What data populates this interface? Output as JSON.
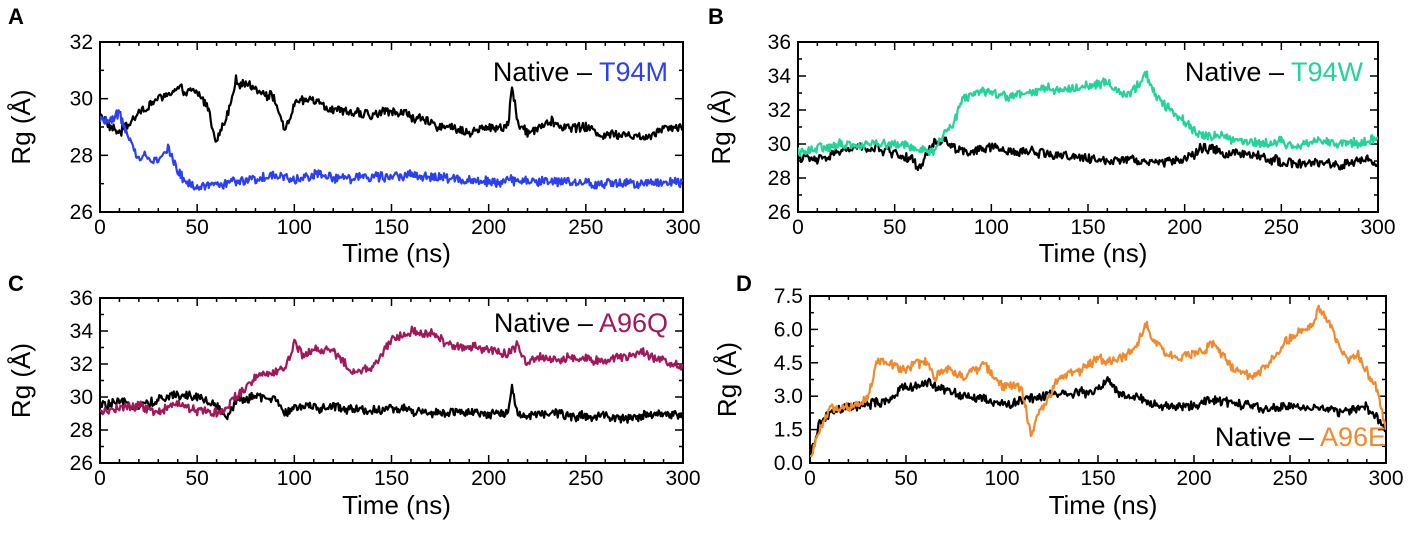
{
  "chart_data": [
    {
      "type": "line",
      "panel": "A",
      "xlabel": "Time (ns)",
      "ylabel": "Rg (Å)",
      "xlim": [
        0,
        300
      ],
      "ylim": [
        26,
        32
      ],
      "xticks": [
        0,
        50,
        100,
        150,
        200,
        250,
        300
      ],
      "yticks": [
        26,
        28,
        30,
        32
      ],
      "legend": {
        "prefix": "Native – ",
        "mutant": "T94M",
        "position": "top-right"
      },
      "series": [
        {
          "name": "Native",
          "color": "#000000",
          "x": [
            0,
            5,
            10,
            20,
            30,
            40,
            50,
            55,
            60,
            65,
            70,
            80,
            90,
            95,
            100,
            110,
            120,
            130,
            140,
            150,
            160,
            170,
            180,
            190,
            200,
            210,
            212,
            215,
            220,
            230,
            240,
            250,
            260,
            270,
            280,
            290,
            300
          ],
          "values": [
            29.5,
            29.0,
            28.8,
            29.5,
            30.0,
            30.3,
            30.2,
            29.8,
            28.5,
            29.3,
            30.6,
            30.4,
            30.0,
            28.8,
            29.8,
            30.0,
            29.6,
            29.5,
            29.4,
            29.6,
            29.4,
            29.1,
            29.0,
            28.8,
            29.0,
            29.0,
            30.5,
            29.1,
            28.8,
            29.2,
            29.0,
            29.0,
            28.7,
            28.8,
            28.6,
            29.0,
            29.0
          ]
        },
        {
          "name": "T94M",
          "color": "#2b3ff5",
          "x": [
            0,
            5,
            10,
            15,
            20,
            25,
            30,
            35,
            40,
            45,
            50,
            60,
            80,
            90,
            100,
            110,
            130,
            150,
            175,
            200,
            225,
            250,
            275,
            300
          ],
          "values": [
            29.3,
            29.2,
            29.5,
            28.5,
            27.9,
            28.0,
            27.8,
            28.3,
            27.4,
            27.0,
            26.9,
            27.0,
            27.1,
            27.3,
            27.1,
            27.3,
            27.2,
            27.3,
            27.2,
            27.1,
            27.1,
            27.0,
            27.0,
            27.1
          ]
        }
      ]
    },
    {
      "type": "line",
      "panel": "B",
      "xlabel": "Time (ns)",
      "ylabel": "Rg (Å)",
      "xlim": [
        0,
        300
      ],
      "ylim": [
        26,
        36
      ],
      "xticks": [
        0,
        50,
        100,
        150,
        200,
        250,
        300
      ],
      "yticks": [
        26,
        28,
        30,
        32,
        34,
        36
      ],
      "legend": {
        "prefix": "Native – ",
        "mutant": "T94W",
        "position": "top-right"
      },
      "series": [
        {
          "name": "Native",
          "color": "#000000",
          "x": [
            0,
            10,
            20,
            30,
            40,
            50,
            60,
            62,
            70,
            75,
            80,
            90,
            100,
            110,
            120,
            130,
            140,
            150,
            160,
            170,
            180,
            190,
            200,
            210,
            220,
            230,
            240,
            250,
            260,
            270,
            280,
            290,
            300
          ],
          "values": [
            29.3,
            29.0,
            29.5,
            29.8,
            29.7,
            29.5,
            29.0,
            28.4,
            30.0,
            30.3,
            29.8,
            29.5,
            29.8,
            29.5,
            29.6,
            29.4,
            29.3,
            29.1,
            29.0,
            29.2,
            29.0,
            28.9,
            29.1,
            29.8,
            29.5,
            29.4,
            29.2,
            29.0,
            28.8,
            28.9,
            28.7,
            29.0,
            28.9
          ]
        },
        {
          "name": "T94W",
          "color": "#23d49a",
          "x": [
            0,
            10,
            20,
            30,
            40,
            50,
            60,
            70,
            75,
            80,
            85,
            90,
            100,
            110,
            120,
            130,
            140,
            150,
            160,
            165,
            170,
            175,
            180,
            185,
            190,
            200,
            210,
            220,
            230,
            240,
            250,
            260,
            270,
            280,
            290,
            300
          ],
          "values": [
            29.6,
            29.7,
            29.9,
            30.0,
            30.1,
            30.0,
            29.8,
            29.5,
            30.5,
            31.2,
            32.6,
            32.9,
            33.1,
            32.8,
            33.0,
            33.3,
            33.2,
            33.5,
            33.6,
            33.2,
            32.7,
            33.3,
            34.2,
            32.8,
            32.3,
            31.2,
            30.5,
            30.4,
            30.2,
            30.0,
            30.1,
            29.9,
            30.2,
            30.1,
            30.0,
            30.3
          ]
        }
      ]
    },
    {
      "type": "line",
      "panel": "C",
      "xlabel": "Time (ns)",
      "ylabel": "Rg (Å)",
      "xlim": [
        0,
        300
      ],
      "ylim": [
        26,
        36
      ],
      "xticks": [
        0,
        50,
        100,
        150,
        200,
        250,
        300
      ],
      "yticks": [
        26,
        28,
        30,
        32,
        34,
        36
      ],
      "legend": {
        "prefix": "Native – ",
        "mutant": "A96Q",
        "position": "top-right"
      },
      "series": [
        {
          "name": "Native",
          "color": "#000000",
          "x": [
            0,
            10,
            20,
            30,
            40,
            50,
            60,
            65,
            70,
            80,
            90,
            95,
            100,
            110,
            120,
            130,
            140,
            150,
            160,
            170,
            180,
            190,
            200,
            210,
            212,
            215,
            220,
            230,
            240,
            250,
            260,
            270,
            280,
            290,
            300
          ],
          "values": [
            29.5,
            29.6,
            29.5,
            29.8,
            30.2,
            30.0,
            29.5,
            28.7,
            29.8,
            30.0,
            29.9,
            28.9,
            29.5,
            29.3,
            29.4,
            29.3,
            29.2,
            29.3,
            29.2,
            29.0,
            29.1,
            29.0,
            28.9,
            29.1,
            30.5,
            29.0,
            28.9,
            29.0,
            28.9,
            28.8,
            28.9,
            28.7,
            28.8,
            29.0,
            28.9
          ]
        },
        {
          "name": "A96Q",
          "color": "#a3175a",
          "x": [
            0,
            10,
            20,
            30,
            40,
            50,
            60,
            65,
            70,
            75,
            80,
            90,
            95,
            100,
            105,
            110,
            120,
            130,
            140,
            145,
            150,
            160,
            170,
            180,
            190,
            200,
            210,
            215,
            220,
            225,
            230,
            240,
            250,
            260,
            270,
            280,
            290,
            300
          ],
          "values": [
            29.0,
            29.3,
            29.5,
            29.0,
            29.6,
            29.2,
            29.0,
            29.3,
            30.0,
            30.6,
            31.2,
            31.5,
            31.8,
            33.2,
            32.5,
            32.8,
            32.9,
            31.5,
            31.7,
            32.6,
            33.5,
            34.0,
            33.8,
            33.2,
            33.0,
            32.9,
            32.6,
            33.2,
            32.0,
            32.4,
            32.3,
            32.4,
            32.3,
            32.1,
            32.5,
            32.6,
            32.2,
            31.8
          ]
        }
      ]
    },
    {
      "type": "line",
      "panel": "D",
      "xlabel": "Time (ns)",
      "ylabel": "Rg (Å)",
      "xlim": [
        0,
        300
      ],
      "ylim": [
        0.0,
        7.5
      ],
      "xticks": [
        0,
        50,
        100,
        150,
        200,
        250,
        300
      ],
      "yticks": [
        "0.0",
        "1.5",
        "3.0",
        "4.5",
        "6.0",
        "7.5"
      ],
      "legend": {
        "prefix": "Native – ",
        "mutant": "A96E",
        "position": "bottom-right"
      },
      "series": [
        {
          "name": "Native",
          "color": "#000000",
          "x": [
            0,
            5,
            10,
            20,
            30,
            40,
            50,
            60,
            70,
            80,
            90,
            100,
            110,
            120,
            130,
            140,
            150,
            155,
            160,
            170,
            180,
            190,
            200,
            210,
            220,
            230,
            240,
            250,
            260,
            270,
            280,
            290,
            300
          ],
          "values": [
            0.2,
            1.8,
            2.2,
            2.5,
            2.6,
            2.8,
            3.4,
            3.6,
            3.3,
            3.0,
            2.9,
            2.6,
            2.8,
            3.0,
            3.2,
            3.1,
            3.3,
            3.8,
            3.1,
            2.9,
            2.6,
            2.5,
            2.6,
            2.8,
            2.7,
            2.5,
            2.4,
            2.6,
            2.5,
            2.4,
            2.3,
            2.5,
            1.5
          ]
        },
        {
          "name": "A96E",
          "color": "#f28a2d",
          "x": [
            0,
            5,
            10,
            20,
            30,
            35,
            40,
            50,
            60,
            65,
            70,
            80,
            90,
            100,
            110,
            115,
            120,
            130,
            140,
            150,
            160,
            170,
            175,
            180,
            190,
            200,
            210,
            220,
            230,
            240,
            250,
            260,
            265,
            270,
            280,
            285,
            290,
            295,
            300
          ],
          "values": [
            0.3,
            1.4,
            2.4,
            2.5,
            2.9,
            4.6,
            4.5,
            4.2,
            4.6,
            3.8,
            4.2,
            3.9,
            4.4,
            3.5,
            3.4,
            1.3,
            2.3,
            3.9,
            4.1,
            4.7,
            4.6,
            5.2,
            6.3,
            5.3,
            4.7,
            4.9,
            5.3,
            4.4,
            3.8,
            4.6,
            5.6,
            6.0,
            6.9,
            6.4,
            4.6,
            4.9,
            4.1,
            3.4,
            1.5
          ]
        }
      ]
    }
  ]
}
